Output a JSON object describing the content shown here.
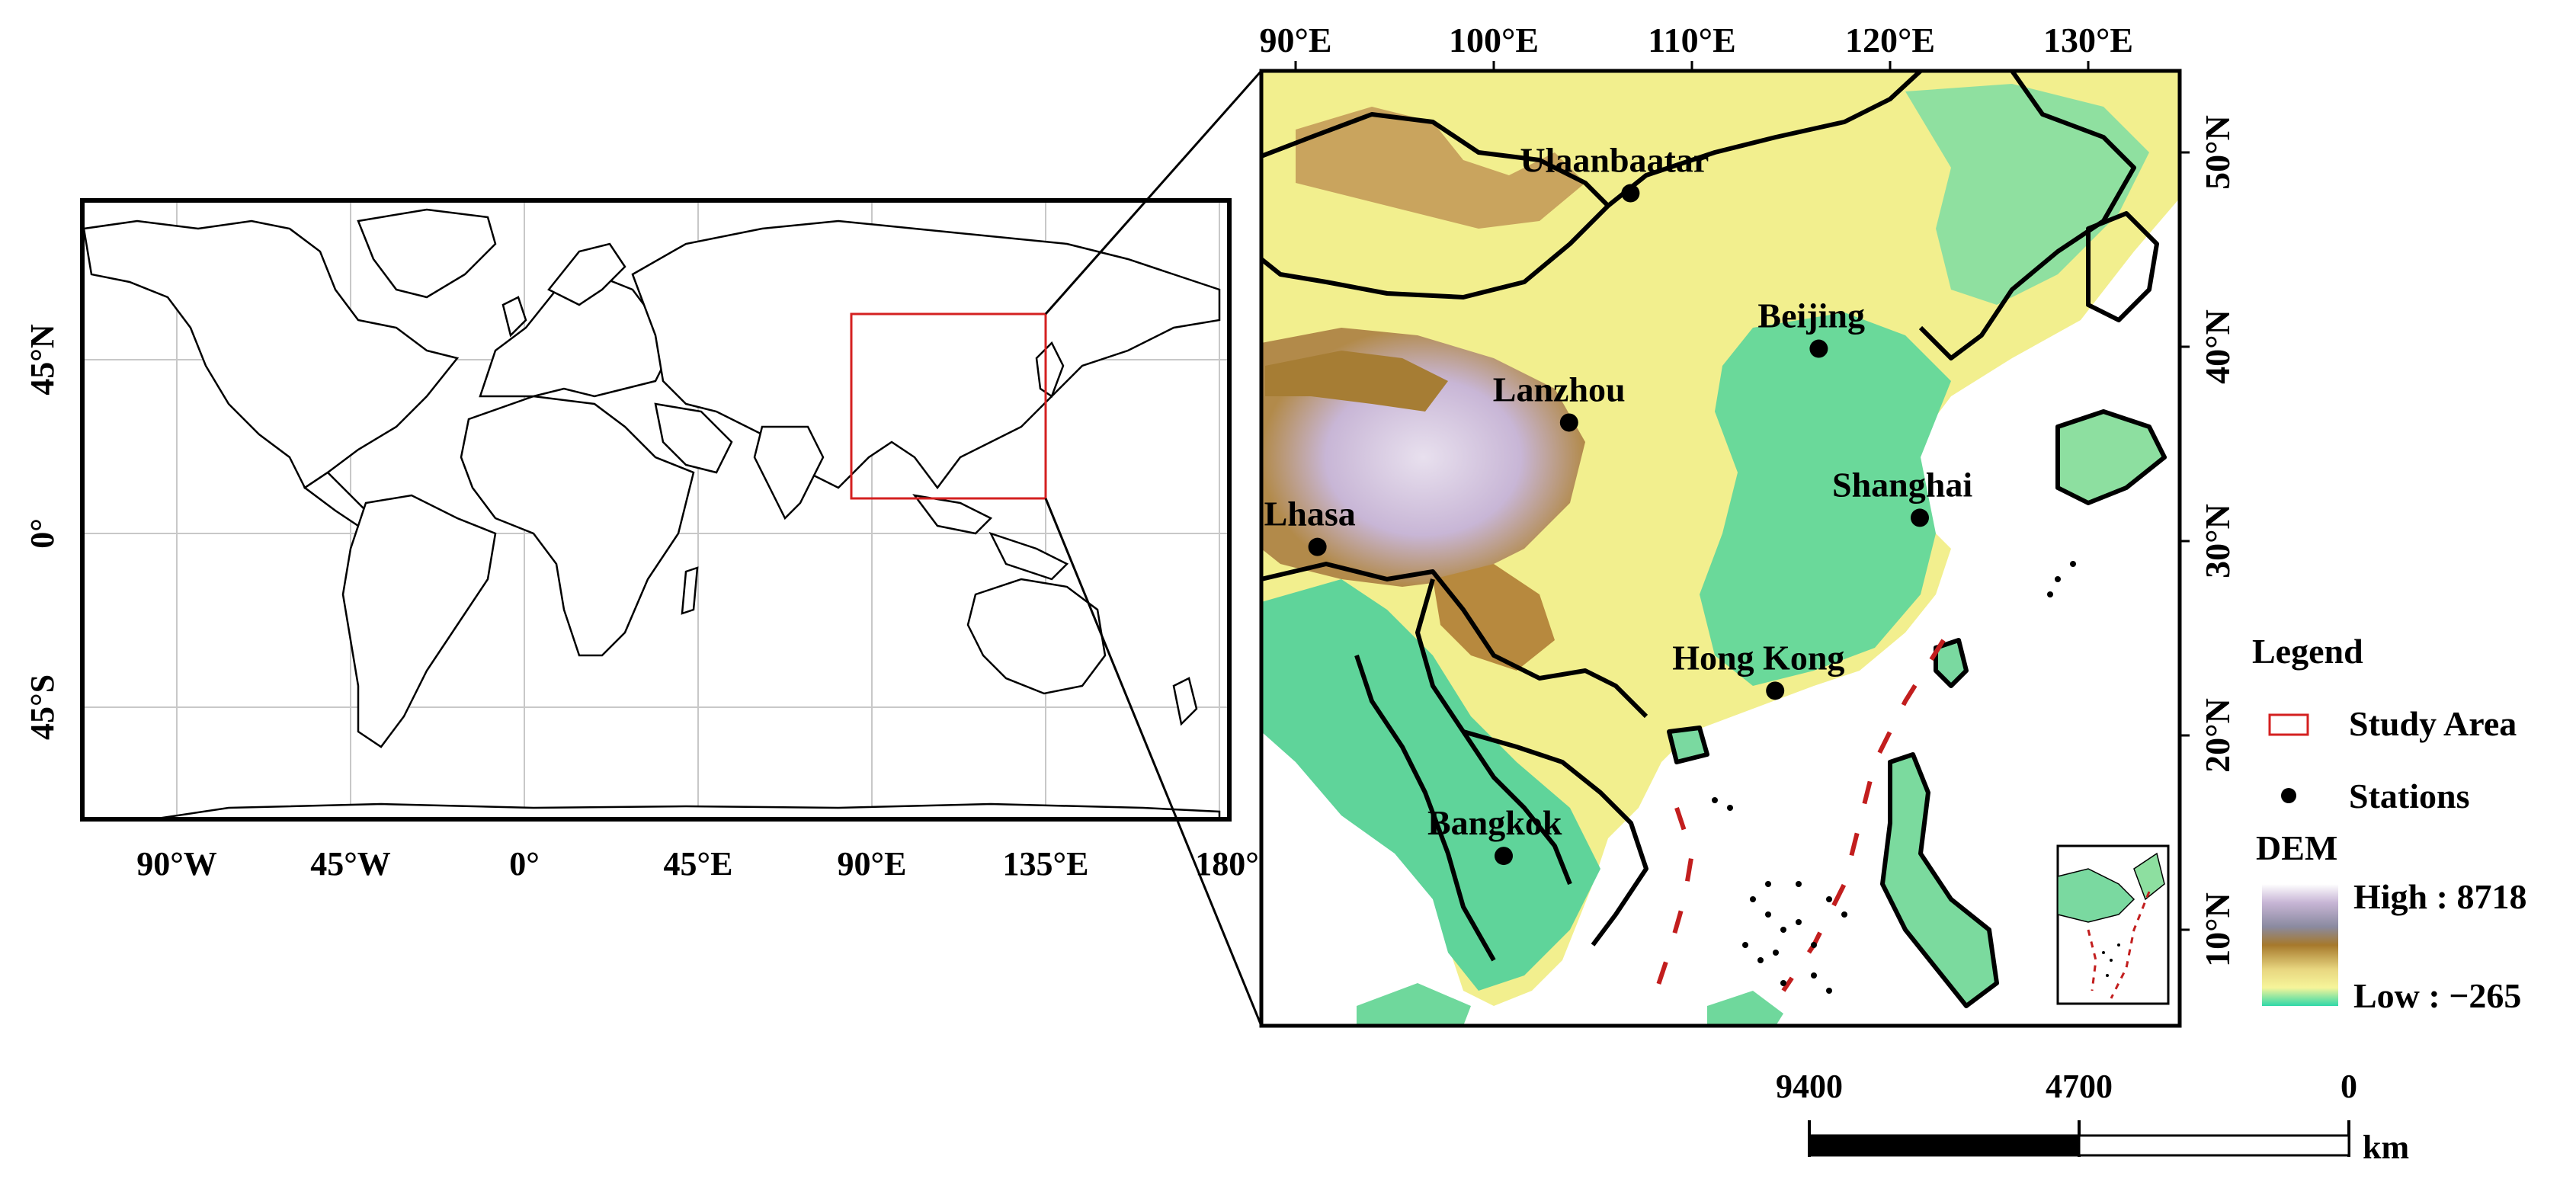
{
  "world_map": {
    "lat_labels": [
      "45°N",
      "0°",
      "45°S"
    ],
    "lon_labels": [
      "90°W",
      "45°W",
      "0°",
      "45°E",
      "90°E",
      "135°E",
      "180°"
    ]
  },
  "detail_map": {
    "top_lon_labels": [
      "90°E",
      "100°E",
      "110°E",
      "120°E",
      "130°E"
    ],
    "right_lat_labels": [
      "50°N",
      "40°N",
      "30°N",
      "20°N",
      "10°N"
    ],
    "stations": [
      {
        "name": "Ulaanbaatar",
        "lon": 106.9,
        "lat": 47.9
      },
      {
        "name": "Beijing",
        "lon": 116.4,
        "lat": 39.9
      },
      {
        "name": "Lanzhou",
        "lon": 103.8,
        "lat": 36.1
      },
      {
        "name": "Shanghai",
        "lon": 121.5,
        "lat": 31.2
      },
      {
        "name": "Lhasa",
        "lon": 91.1,
        "lat": 29.7
      },
      {
        "name": "Hong Kong",
        "lon": 114.2,
        "lat": 22.3
      },
      {
        "name": "Bangkok",
        "lon": 100.5,
        "lat": 13.8
      }
    ]
  },
  "legend": {
    "title": "Legend",
    "study_area": "Study Area",
    "stations": "Stations",
    "dem_title": "DEM",
    "high": "High : 8718",
    "low": "Low : −265"
  },
  "scale_bar": {
    "labels": [
      "9400",
      "4700",
      "0"
    ],
    "unit": "km"
  },
  "colors": {
    "study_area": "#d42020",
    "lowland": "#3fd6a0",
    "plain": "#8fe07a",
    "hills": "#f4f08a",
    "mountain": "#b8893a",
    "high": "#cbb8d4"
  }
}
